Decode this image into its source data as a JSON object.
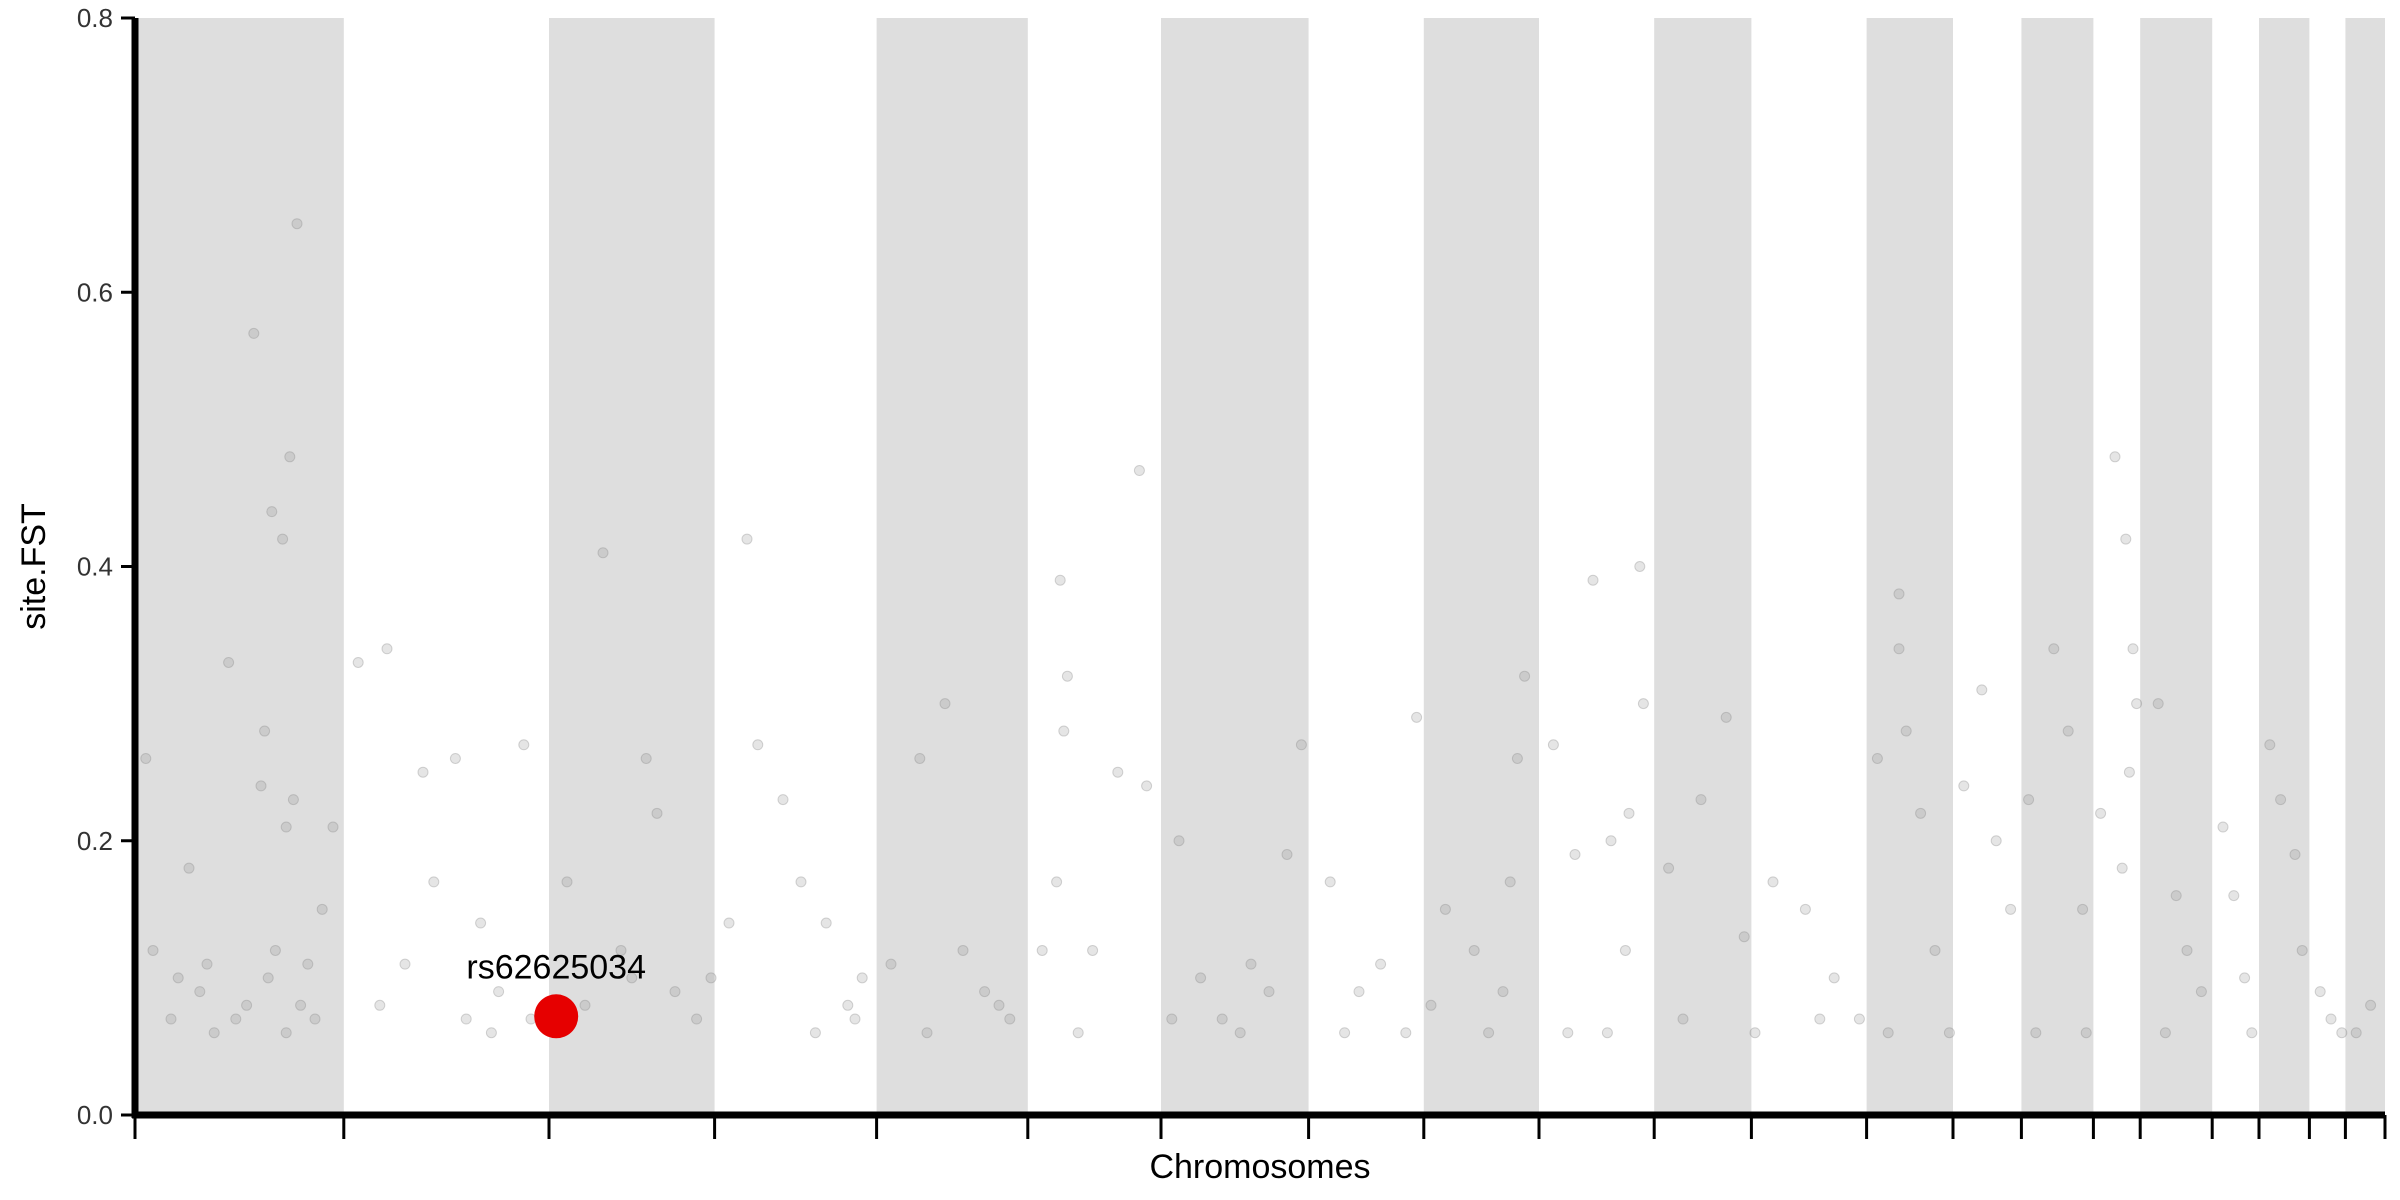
{
  "chart_data": {
    "type": "scatter",
    "title": "",
    "xlabel": "Chromosomes",
    "ylabel": "site.FST",
    "ylim": [
      0,
      0.8
    ],
    "y_ticks": [
      "0.0",
      "0.2",
      "0.4",
      "0.6",
      "0.8"
    ],
    "x_tick_labels": [],
    "grid": false,
    "legend": "none",
    "background_bands": "alternating gray chromosome bands",
    "colors": {
      "band": "#dedede",
      "point": "#888888",
      "highlight": "#e60000",
      "axis": "#000000"
    },
    "chromosome_boundaries": [
      0,
      5.8,
      11.5,
      16.1,
      20.6,
      24.8,
      28.5,
      32.6,
      35.8,
      39.0,
      42.2,
      44.9,
      48.1,
      50.5,
      52.4,
      54.4,
      55.7,
      57.7,
      59.0,
      60.4,
      61.4,
      62.5
    ],
    "series": [
      {
        "values": [
          [
            0.3,
            0.26
          ],
          [
            0.5,
            0.12
          ],
          [
            1.0,
            0.07
          ],
          [
            1.5,
            0.18
          ],
          [
            2.0,
            0.11
          ],
          [
            2.6,
            0.33
          ],
          [
            3.1,
            0.08
          ],
          [
            3.5,
            0.24
          ],
          [
            4.2,
            0.06
          ],
          [
            4.8,
            0.11
          ],
          [
            3.3,
            0.57
          ],
          [
            3.6,
            0.28
          ],
          [
            3.8,
            0.44
          ],
          [
            4.1,
            0.42
          ],
          [
            4.3,
            0.48
          ],
          [
            4.5,
            0.65
          ],
          [
            4.4,
            0.23
          ],
          [
            4.2,
            0.21
          ],
          [
            3.9,
            0.12
          ],
          [
            4.6,
            0.08
          ],
          [
            5.2,
            0.15
          ],
          [
            5.5,
            0.21
          ],
          [
            1.8,
            0.09
          ],
          [
            2.2,
            0.06
          ],
          [
            3.7,
            0.1
          ],
          [
            6.2,
            0.33
          ],
          [
            7.0,
            0.34
          ],
          [
            8.0,
            0.25
          ],
          [
            8.3,
            0.17
          ],
          [
            8.9,
            0.26
          ],
          [
            9.6,
            0.14
          ],
          [
            10.1,
            0.09
          ],
          [
            10.8,
            0.27
          ],
          [
            7.5,
            0.11
          ],
          [
            9.2,
            0.07
          ],
          [
            12.0,
            0.17
          ],
          [
            13.0,
            0.41
          ],
          [
            13.5,
            0.12
          ],
          [
            14.2,
            0.26
          ],
          [
            14.5,
            0.22
          ],
          [
            15.0,
            0.09
          ],
          [
            15.6,
            0.07
          ],
          [
            12.5,
            0.08
          ],
          [
            16.5,
            0.14
          ],
          [
            17.0,
            0.42
          ],
          [
            17.3,
            0.27
          ],
          [
            18.0,
            0.23
          ],
          [
            18.5,
            0.17
          ],
          [
            19.2,
            0.14
          ],
          [
            19.8,
            0.08
          ],
          [
            20.2,
            0.1
          ],
          [
            21.0,
            0.11
          ],
          [
            21.8,
            0.26
          ],
          [
            22.5,
            0.3
          ],
          [
            23.0,
            0.12
          ],
          [
            23.6,
            0.09
          ],
          [
            24.3,
            0.07
          ],
          [
            25.2,
            0.12
          ],
          [
            25.7,
            0.39
          ],
          [
            25.9,
            0.32
          ],
          [
            25.8,
            0.28
          ],
          [
            25.6,
            0.17
          ],
          [
            26.6,
            0.12
          ],
          [
            27.3,
            0.25
          ],
          [
            27.9,
            0.47
          ],
          [
            28.1,
            0.24
          ],
          [
            29.0,
            0.2
          ],
          [
            29.6,
            0.1
          ],
          [
            30.2,
            0.07
          ],
          [
            31.0,
            0.11
          ],
          [
            31.5,
            0.09
          ],
          [
            32.0,
            0.19
          ],
          [
            32.4,
            0.27
          ],
          [
            33.2,
            0.17
          ],
          [
            34.0,
            0.09
          ],
          [
            34.6,
            0.11
          ],
          [
            35.3,
            0.06
          ],
          [
            35.6,
            0.29
          ],
          [
            36.4,
            0.15
          ],
          [
            37.2,
            0.12
          ],
          [
            38.0,
            0.09
          ],
          [
            38.6,
            0.32
          ],
          [
            38.4,
            0.26
          ],
          [
            38.2,
            0.17
          ],
          [
            39.4,
            0.27
          ],
          [
            40.0,
            0.19
          ],
          [
            40.5,
            0.39
          ],
          [
            41.0,
            0.2
          ],
          [
            41.5,
            0.22
          ],
          [
            41.8,
            0.4
          ],
          [
            41.9,
            0.3
          ],
          [
            41.4,
            0.12
          ],
          [
            42.6,
            0.18
          ],
          [
            43.5,
            0.23
          ],
          [
            44.2,
            0.29
          ],
          [
            44.7,
            0.13
          ],
          [
            45.5,
            0.17
          ],
          [
            46.4,
            0.15
          ],
          [
            47.2,
            0.1
          ],
          [
            47.9,
            0.07
          ],
          [
            48.4,
            0.26
          ],
          [
            49.0,
            0.38
          ],
          [
            49.0,
            0.34
          ],
          [
            49.2,
            0.28
          ],
          [
            49.6,
            0.22
          ],
          [
            50.0,
            0.12
          ],
          [
            50.8,
            0.24
          ],
          [
            51.3,
            0.31
          ],
          [
            51.7,
            0.2
          ],
          [
            52.1,
            0.15
          ],
          [
            52.6,
            0.23
          ],
          [
            53.3,
            0.34
          ],
          [
            53.7,
            0.28
          ],
          [
            54.1,
            0.15
          ],
          [
            54.6,
            0.22
          ],
          [
            55.0,
            0.48
          ],
          [
            55.3,
            0.42
          ],
          [
            55.5,
            0.34
          ],
          [
            55.6,
            0.3
          ],
          [
            55.4,
            0.25
          ],
          [
            55.2,
            0.18
          ],
          [
            56.2,
            0.3
          ],
          [
            56.7,
            0.16
          ],
          [
            57.0,
            0.12
          ],
          [
            57.4,
            0.09
          ],
          [
            58.0,
            0.21
          ],
          [
            58.3,
            0.16
          ],
          [
            58.6,
            0.1
          ],
          [
            59.3,
            0.27
          ],
          [
            59.6,
            0.23
          ],
          [
            60.0,
            0.19
          ],
          [
            60.2,
            0.12
          ],
          [
            60.7,
            0.09
          ],
          [
            61.0,
            0.07
          ],
          [
            61.7,
            0.06
          ],
          [
            62.1,
            0.08
          ],
          [
            1.2,
            0.1
          ],
          [
            2.8,
            0.07
          ],
          [
            5.0,
            0.07
          ],
          [
            6.8,
            0.08
          ],
          [
            9.9,
            0.06
          ],
          [
            11.0,
            0.07
          ],
          [
            13.8,
            0.1
          ],
          [
            16.0,
            0.1
          ],
          [
            18.9,
            0.06
          ],
          [
            20.0,
            0.07
          ],
          [
            22.0,
            0.06
          ],
          [
            24.0,
            0.08
          ],
          [
            26.2,
            0.06
          ],
          [
            28.8,
            0.07
          ],
          [
            30.7,
            0.06
          ],
          [
            33.6,
            0.06
          ],
          [
            36.0,
            0.08
          ],
          [
            37.6,
            0.06
          ],
          [
            39.8,
            0.06
          ],
          [
            40.9,
            0.06
          ],
          [
            43.0,
            0.07
          ],
          [
            45.0,
            0.06
          ],
          [
            46.8,
            0.07
          ],
          [
            48.7,
            0.06
          ],
          [
            50.4,
            0.06
          ],
          [
            52.8,
            0.06
          ],
          [
            54.2,
            0.06
          ],
          [
            56.4,
            0.06
          ],
          [
            58.8,
            0.06
          ],
          [
            61.3,
            0.06
          ]
        ]
      },
      {
        "name": "rs62625034",
        "highlight": true,
        "values": [
          [
            11.7,
            0.072
          ]
        ]
      }
    ]
  }
}
